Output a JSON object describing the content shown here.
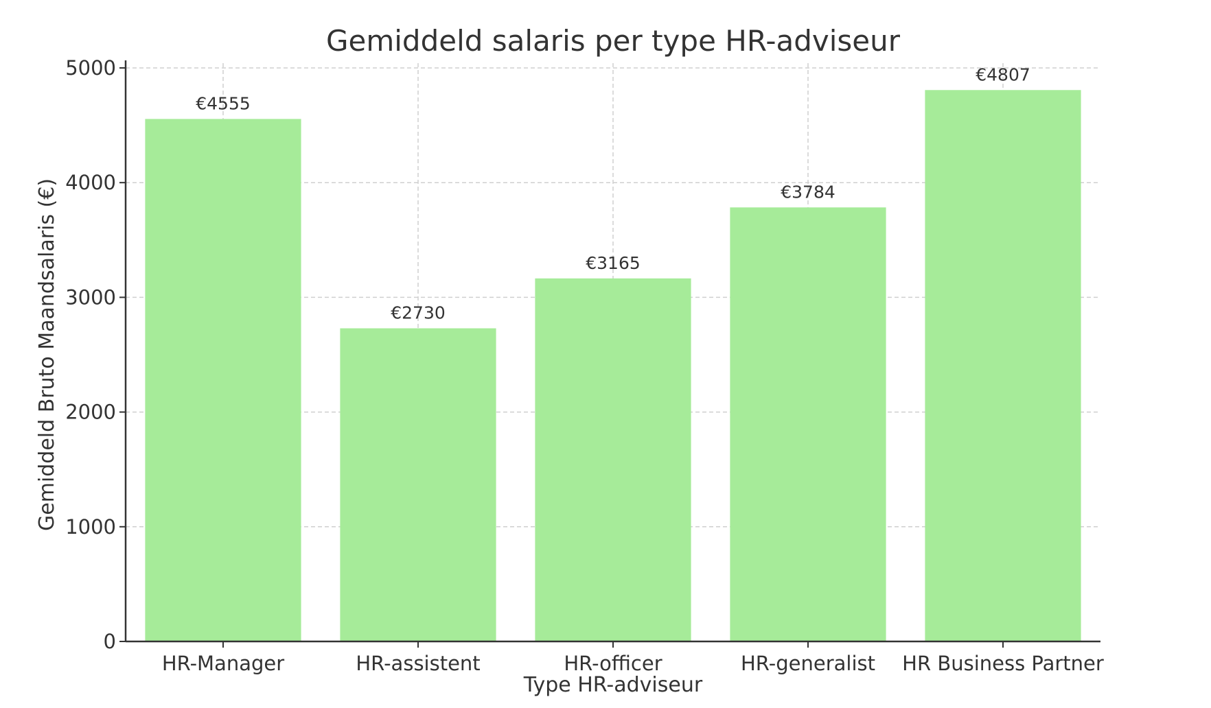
{
  "chart_data": {
    "type": "bar",
    "title": "Gemiddeld salaris per type HR-adviseur",
    "xlabel": "Type HR-adviseur",
    "ylabel": "Gemiddeld Bruto Maandsalaris (€)",
    "categories": [
      "HR-Manager",
      "HR-assistent",
      "HR-officer",
      "HR-generalist",
      "HR Business Partner"
    ],
    "values": [
      4555,
      2730,
      3165,
      3784,
      4807
    ],
    "value_labels": [
      "€4555",
      "€2730",
      "€3165",
      "€3784",
      "€4807"
    ],
    "ylim": [
      0,
      5000
    ],
    "yticks": [
      0,
      1000,
      2000,
      3000,
      4000,
      5000
    ],
    "ytick_labels": [
      "0",
      "1000",
      "2000",
      "3000",
      "4000",
      "5000"
    ],
    "grid": true,
    "colors": {
      "bar": "#a6eb99",
      "axis": "#333333",
      "grid": "#cfcfcf",
      "text": "#333333"
    }
  }
}
